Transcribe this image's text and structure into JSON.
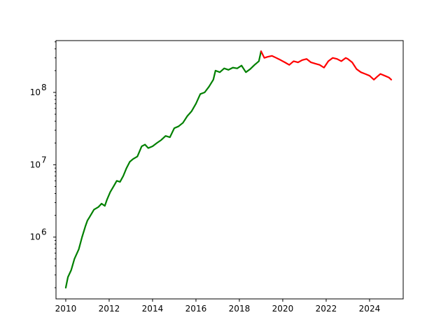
{
  "chart_data": {
    "type": "line",
    "title": "",
    "xlabel": "",
    "ylabel": "",
    "xscale": "linear",
    "yscale": "log",
    "xlim": [
      2009.55,
      2025.55
    ],
    "ylim": [
      140000,
      520000000
    ],
    "grid": false,
    "legend": "none",
    "x_ticks": [
      2010,
      2012,
      2014,
      2016,
      2018,
      2020,
      2022,
      2024
    ],
    "x_tick_labels": [
      "2010",
      "2012",
      "2014",
      "2016",
      "2018",
      "2020",
      "2022",
      "2024"
    ],
    "y_major_ticks": [
      1000000,
      10000000,
      100000000
    ],
    "y_tick_labels": [
      {
        "base": "10",
        "exp": "6"
      },
      {
        "base": "10",
        "exp": "7"
      },
      {
        "base": "10",
        "exp": "8"
      }
    ],
    "y_minor_ticks": [
      200000,
      300000,
      400000,
      500000,
      600000,
      700000,
      800000,
      900000,
      2000000,
      3000000,
      4000000,
      5000000,
      6000000,
      7000000,
      8000000,
      9000000,
      20000000,
      30000000,
      40000000,
      50000000,
      60000000,
      70000000,
      80000000,
      90000000,
      200000000,
      300000000,
      400000000,
      500000000
    ],
    "series": [
      {
        "color": "#008000",
        "x": [
          2010.0,
          2010.1,
          2010.25,
          2010.4,
          2010.6,
          2010.75,
          2010.9,
          2011.0,
          2011.1,
          2011.3,
          2011.5,
          2011.65,
          2011.8,
          2011.9,
          2012.05,
          2012.2,
          2012.35,
          2012.5,
          2012.65,
          2012.8,
          2012.95,
          2013.1,
          2013.3,
          2013.5,
          2013.65,
          2013.8,
          2014.0,
          2014.2,
          2014.4,
          2014.6,
          2014.8,
          2015.0,
          2015.2,
          2015.4,
          2015.6,
          2015.8,
          2016.0,
          2016.2,
          2016.4,
          2016.6,
          2016.8,
          2016.9,
          2017.1,
          2017.3,
          2017.5,
          2017.7,
          2017.9,
          2018.1,
          2018.3,
          2018.5,
          2018.7,
          2018.9,
          2019.0
        ],
        "y": [
          200000,
          280000,
          350000,
          500000,
          680000,
          1000000,
          1400000,
          1700000,
          1900000,
          2400000,
          2600000,
          2900000,
          2700000,
          3300000,
          4200000,
          5000000,
          6000000,
          5800000,
          7000000,
          9000000,
          11000000,
          12000000,
          13000000,
          18000000,
          19000000,
          17000000,
          18000000,
          20000000,
          22000000,
          25000000,
          24000000,
          32000000,
          34000000,
          38000000,
          47000000,
          55000000,
          70000000,
          95000000,
          100000000,
          120000000,
          150000000,
          200000000,
          190000000,
          215000000,
          205000000,
          220000000,
          215000000,
          235000000,
          190000000,
          210000000,
          240000000,
          270000000,
          370000000
        ]
      },
      {
        "color": "#ff0000",
        "x": [
          2019.0,
          2019.15,
          2019.3,
          2019.5,
          2019.7,
          2019.9,
          2020.1,
          2020.3,
          2020.5,
          2020.7,
          2020.9,
          2021.1,
          2021.3,
          2021.5,
          2021.7,
          2021.9,
          2022.1,
          2022.3,
          2022.5,
          2022.7,
          2022.9,
          2023.0,
          2023.2,
          2023.4,
          2023.6,
          2023.8,
          2024.0,
          2024.2,
          2024.35,
          2024.5,
          2024.7,
          2024.9,
          2025.0
        ],
        "y": [
          370000000,
          300000000,
          310000000,
          320000000,
          300000000,
          280000000,
          260000000,
          240000000,
          270000000,
          260000000,
          280000000,
          290000000,
          260000000,
          250000000,
          240000000,
          220000000,
          270000000,
          300000000,
          290000000,
          270000000,
          300000000,
          290000000,
          260000000,
          210000000,
          190000000,
          180000000,
          170000000,
          150000000,
          165000000,
          180000000,
          170000000,
          160000000,
          150000000
        ]
      }
    ]
  }
}
